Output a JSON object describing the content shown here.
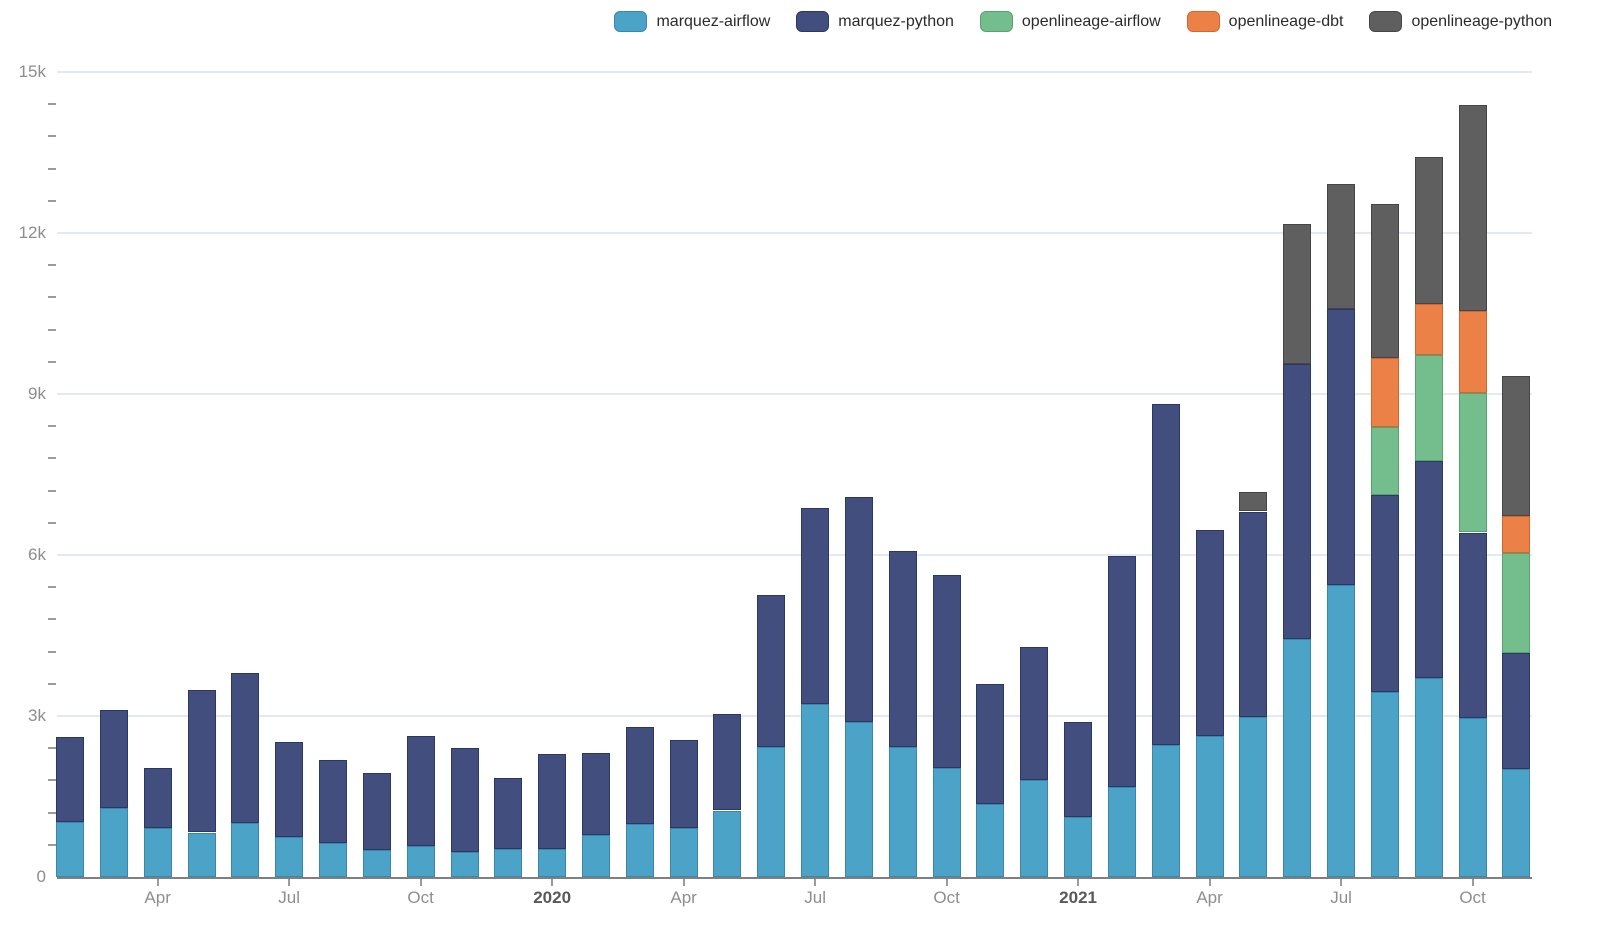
{
  "chart_data": {
    "type": "bar",
    "stacked": true,
    "x_months": [
      "2019-02",
      "2019-03",
      "2019-04",
      "2019-05",
      "2019-06",
      "2019-07",
      "2019-08",
      "2019-09",
      "2019-10",
      "2019-11",
      "2019-12",
      "2020-01",
      "2020-02",
      "2020-03",
      "2020-04",
      "2020-05",
      "2020-06",
      "2020-07",
      "2020-08",
      "2020-09",
      "2020-10",
      "2020-11",
      "2020-12",
      "2021-01",
      "2021-02",
      "2021-03",
      "2021-04",
      "2021-05",
      "2021-06",
      "2021-07",
      "2021-08",
      "2021-09",
      "2021-10",
      "2021-11"
    ],
    "series": [
      {
        "name": "marquez-airflow",
        "color": "#4ba3c7",
        "border": "#3a87a8",
        "values": [
          1030,
          1290,
          910,
          830,
          1010,
          750,
          640,
          500,
          580,
          470,
          520,
          520,
          790,
          980,
          910,
          1240,
          2420,
          3220,
          2890,
          2430,
          2040,
          1360,
          1810,
          1120,
          1670,
          2460,
          2630,
          2990,
          4430,
          5440,
          3450,
          3710,
          2960,
          2010
        ]
      },
      {
        "name": "marquez-python",
        "color": "#424e7e",
        "border": "#2b3765",
        "values": [
          1580,
          1830,
          1120,
          2650,
          2800,
          1760,
          1550,
          1430,
          2050,
          1930,
          1320,
          1780,
          1530,
          1810,
          1640,
          1800,
          2830,
          3660,
          4190,
          3650,
          3590,
          2240,
          2480,
          1770,
          4320,
          6350,
          3830,
          3820,
          5130,
          5140,
          3660,
          4040,
          3460,
          2160
        ]
      },
      {
        "name": "openlineage-airflow",
        "color": "#74be8e",
        "border": "#55a371",
        "values": [
          0,
          0,
          0,
          0,
          0,
          0,
          0,
          0,
          0,
          0,
          0,
          0,
          0,
          0,
          0,
          0,
          0,
          0,
          0,
          0,
          0,
          0,
          0,
          0,
          0,
          0,
          0,
          0,
          0,
          0,
          1270,
          1980,
          2600,
          1860
        ]
      },
      {
        "name": "openlineage-dbt",
        "color": "#ec8148",
        "border": "#d3662e",
        "values": [
          0,
          0,
          0,
          0,
          0,
          0,
          0,
          0,
          0,
          0,
          0,
          0,
          0,
          0,
          0,
          0,
          0,
          0,
          0,
          0,
          0,
          0,
          0,
          0,
          0,
          0,
          0,
          0,
          0,
          0,
          1290,
          940,
          1530,
          700
        ]
      },
      {
        "name": "openlineage-python",
        "color": "#5f5f5f",
        "border": "#454545",
        "values": [
          0,
          0,
          0,
          0,
          0,
          0,
          0,
          0,
          0,
          0,
          0,
          0,
          0,
          0,
          0,
          0,
          0,
          0,
          0,
          0,
          0,
          0,
          0,
          0,
          0,
          0,
          0,
          360,
          2600,
          2340,
          2870,
          2750,
          3840,
          2600
        ]
      }
    ],
    "y_axis": {
      "max": 15000,
      "minor_step": 600,
      "ticks": [
        {
          "label": "15k",
          "value": 15000
        },
        {
          "label": "12k",
          "value": 12000
        },
        {
          "label": "9k",
          "value": 9000
        },
        {
          "label": "6k",
          "value": 6000
        },
        {
          "label": "3k",
          "value": 3000
        },
        {
          "label": "0",
          "value": 0
        }
      ]
    },
    "x_axis": {
      "ticks": [
        {
          "label": "Apr",
          "bar_index": 2,
          "bold": false
        },
        {
          "label": "Jul",
          "bar_index": 5,
          "bold": false
        },
        {
          "label": "Oct",
          "bar_index": 8,
          "bold": false
        },
        {
          "label": "2020",
          "bar_index": 11,
          "bold": true
        },
        {
          "label": "Apr",
          "bar_index": 14,
          "bold": false
        },
        {
          "label": "Jul",
          "bar_index": 17,
          "bold": false
        },
        {
          "label": "Oct",
          "bar_index": 20,
          "bold": false
        },
        {
          "label": "2021",
          "bar_index": 23,
          "bold": true
        },
        {
          "label": "Apr",
          "bar_index": 26,
          "bold": false
        },
        {
          "label": "Jul",
          "bar_index": 29,
          "bold": false
        },
        {
          "label": "Oct",
          "bar_index": 32,
          "bold": false
        }
      ]
    },
    "legend_position": "top-right",
    "grid": true
  },
  "legend": {
    "items": [
      {
        "label": "marquez-airflow",
        "color": "#4ba3c7",
        "border": "#3a87a8"
      },
      {
        "label": "marquez-python",
        "color": "#424e7e",
        "border": "#2b3765"
      },
      {
        "label": "openlineage-airflow",
        "color": "#74be8e",
        "border": "#55a371"
      },
      {
        "label": "openlineage-dbt",
        "color": "#ec8148",
        "border": "#d3662e"
      },
      {
        "label": "openlineage-python",
        "color": "#5f5f5f",
        "border": "#454545"
      }
    ]
  },
  "colors": {
    "background": "#ffffff",
    "gridline": "#e3e8f1",
    "axis_line": "#7f7f7f",
    "tick": "#9b9b9b",
    "y_label": "#8d8d8d",
    "month_label": "#8e8e8e",
    "year_label": "#58595b",
    "legend_text": "#2b2b2b"
  }
}
